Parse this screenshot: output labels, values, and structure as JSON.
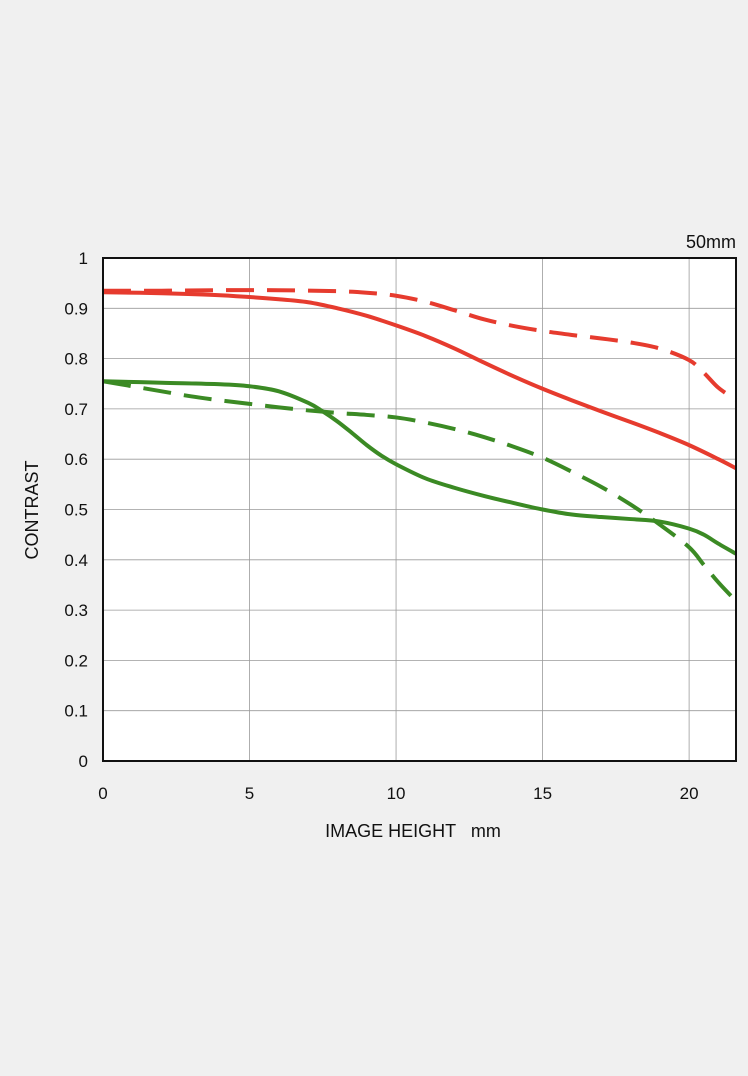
{
  "chart_data": {
    "type": "line",
    "title": "",
    "focal_length_label": "50mm",
    "xlabel": "IMAGE HEIGHT   mm",
    "ylabel": "CONTRAST",
    "xlim": [
      0,
      21.6
    ],
    "ylim": [
      0,
      1
    ],
    "x_ticks": [
      0,
      5,
      10,
      15,
      20
    ],
    "x_tick_labels": [
      "0",
      "5",
      "10",
      "15",
      "20"
    ],
    "y_ticks": [
      0,
      0.1,
      0.2,
      0.3,
      0.4,
      0.5,
      0.6,
      0.7,
      0.8,
      0.9,
      1
    ],
    "y_tick_labels": [
      "0",
      "0.1",
      "0.2",
      "0.3",
      "0.4",
      "0.5",
      "0.6",
      "0.7",
      "0.8",
      "0.9",
      "1"
    ],
    "grid": true,
    "legend": "none",
    "series": [
      {
        "color": "#e63b2e",
        "style": "solid",
        "points": [
          [
            0,
            0.932
          ],
          [
            2,
            0.93
          ],
          [
            4,
            0.926
          ],
          [
            6,
            0.918
          ],
          [
            7,
            0.912
          ],
          [
            8,
            0.9
          ],
          [
            9,
            0.885
          ],
          [
            10,
            0.866
          ],
          [
            11,
            0.845
          ],
          [
            12,
            0.82
          ],
          [
            13,
            0.792
          ],
          [
            14,
            0.765
          ],
          [
            15,
            0.74
          ],
          [
            16,
            0.717
          ],
          [
            17,
            0.695
          ],
          [
            18,
            0.674
          ],
          [
            19,
            0.652
          ],
          [
            20,
            0.628
          ],
          [
            21,
            0.6
          ],
          [
            21.6,
            0.582
          ]
        ]
      },
      {
        "color": "#e63b2e",
        "style": "dashed",
        "points": [
          [
            0,
            0.935
          ],
          [
            2,
            0.935
          ],
          [
            4,
            0.936
          ],
          [
            6,
            0.936
          ],
          [
            8,
            0.934
          ],
          [
            9,
            0.931
          ],
          [
            10,
            0.925
          ],
          [
            11,
            0.913
          ],
          [
            12,
            0.896
          ],
          [
            13,
            0.878
          ],
          [
            14,
            0.865
          ],
          [
            15,
            0.855
          ],
          [
            16,
            0.847
          ],
          [
            17,
            0.84
          ],
          [
            18,
            0.832
          ],
          [
            19,
            0.82
          ],
          [
            20,
            0.797
          ],
          [
            20.5,
            0.772
          ],
          [
            21,
            0.742
          ],
          [
            21.6,
            0.718
          ]
        ]
      },
      {
        "color": "#3b8a24",
        "style": "solid",
        "points": [
          [
            0,
            0.755
          ],
          [
            2,
            0.752
          ],
          [
            4,
            0.749
          ],
          [
            5,
            0.745
          ],
          [
            6,
            0.735
          ],
          [
            7,
            0.712
          ],
          [
            7.5,
            0.695
          ],
          [
            8,
            0.675
          ],
          [
            8.5,
            0.652
          ],
          [
            9,
            0.628
          ],
          [
            9.5,
            0.607
          ],
          [
            10,
            0.59
          ],
          [
            11,
            0.562
          ],
          [
            12,
            0.543
          ],
          [
            13,
            0.527
          ],
          [
            14,
            0.513
          ],
          [
            15,
            0.5
          ],
          [
            16,
            0.49
          ],
          [
            17,
            0.485
          ],
          [
            18,
            0.481
          ],
          [
            19,
            0.476
          ],
          [
            20,
            0.462
          ],
          [
            20.5,
            0.45
          ],
          [
            21,
            0.432
          ],
          [
            21.6,
            0.412
          ]
        ]
      },
      {
        "color": "#3b8a24",
        "style": "dashed",
        "points": [
          [
            0,
            0.755
          ],
          [
            1,
            0.745
          ],
          [
            2,
            0.735
          ],
          [
            3,
            0.725
          ],
          [
            4,
            0.717
          ],
          [
            5,
            0.71
          ],
          [
            6,
            0.703
          ],
          [
            7,
            0.697
          ],
          [
            8,
            0.692
          ],
          [
            9,
            0.688
          ],
          [
            10,
            0.683
          ],
          [
            11,
            0.673
          ],
          [
            12,
            0.66
          ],
          [
            13,
            0.644
          ],
          [
            14,
            0.625
          ],
          [
            15,
            0.603
          ],
          [
            16,
            0.575
          ],
          [
            17,
            0.545
          ],
          [
            18,
            0.51
          ],
          [
            19,
            0.47
          ],
          [
            20,
            0.425
          ],
          [
            20.5,
            0.39
          ],
          [
            21,
            0.355
          ],
          [
            21.6,
            0.318
          ]
        ]
      }
    ]
  }
}
